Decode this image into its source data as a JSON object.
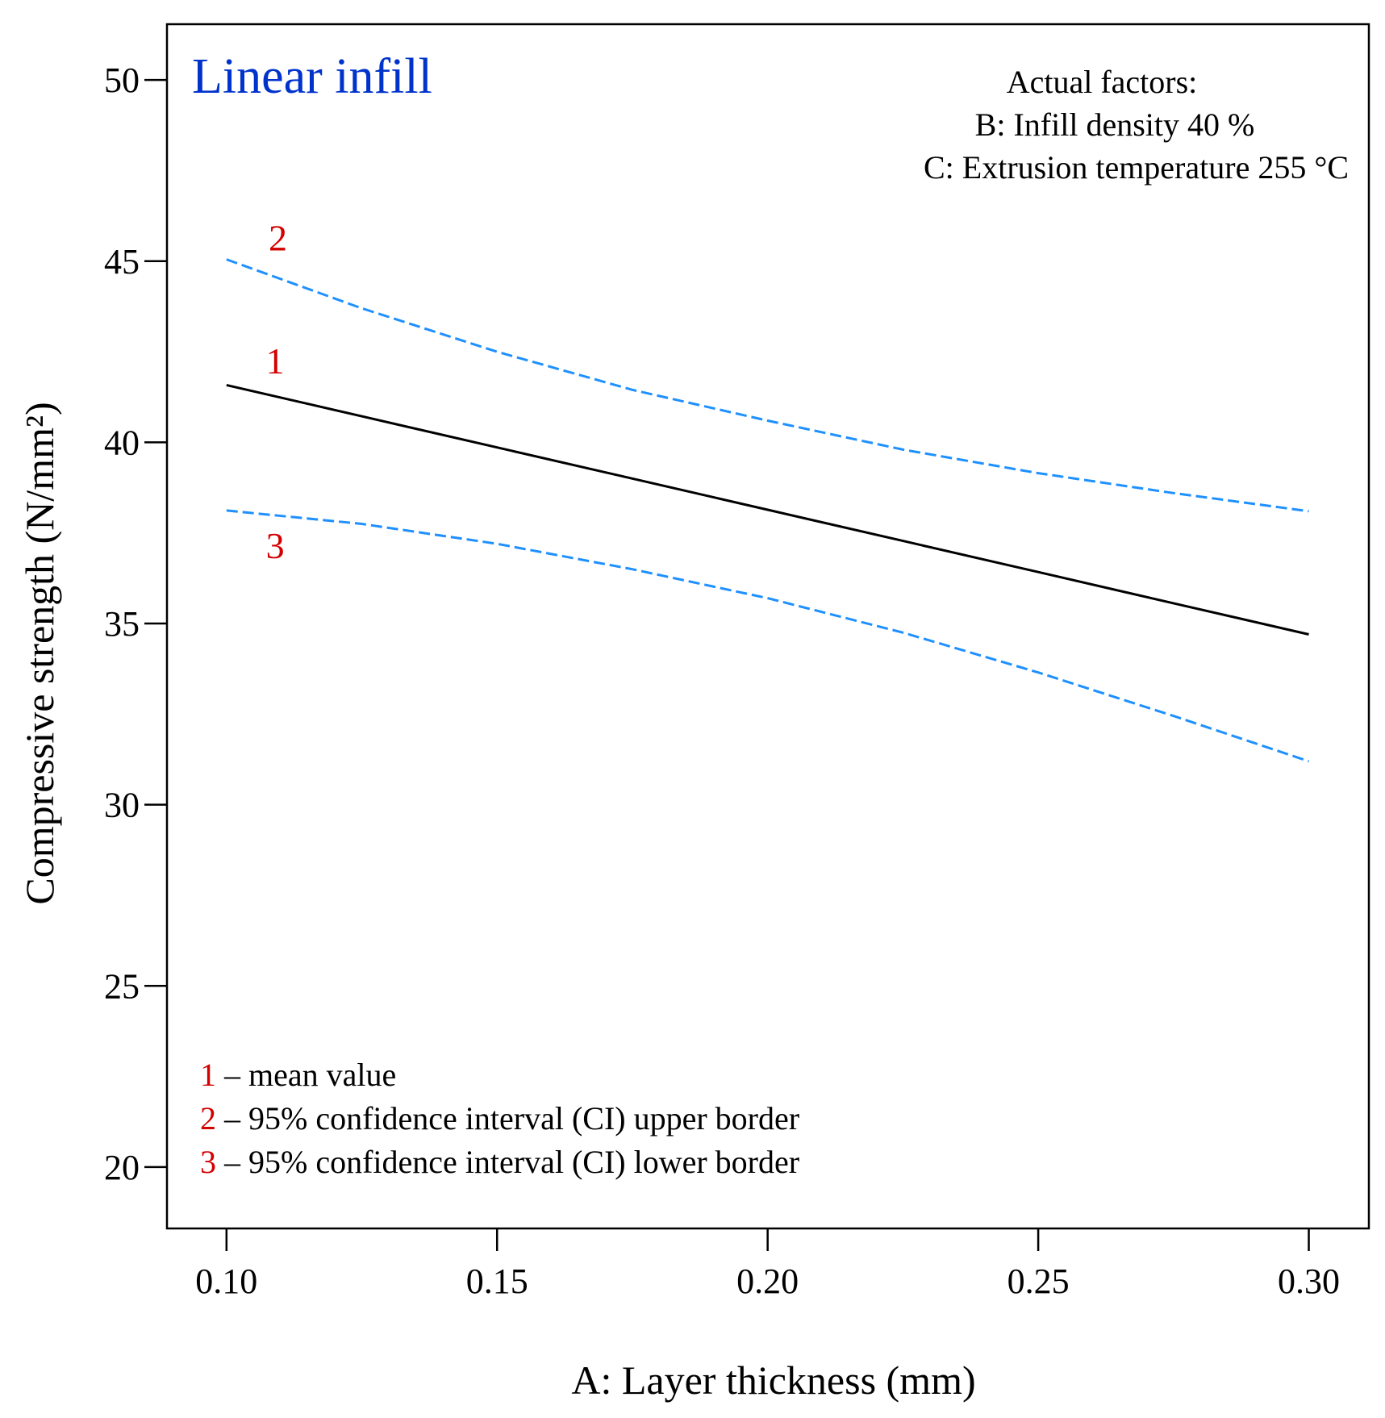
{
  "colors": {
    "title": "#0033cc",
    "mean_line": "#000000",
    "ci_line": "#1e90ff",
    "marker_label": "#d40000",
    "axis": "#000000"
  },
  "chart_data": {
    "type": "line",
    "title": "Linear infill",
    "xlabel": "A: Layer thickness (mm)",
    "ylabel": "Compressive strength (N/mm²)",
    "xlim": [
      0.089,
      0.3111
    ],
    "ylim": [
      18.306,
      51.54
    ],
    "xticks": [
      0.1,
      0.15,
      0.2,
      0.25,
      0.3
    ],
    "xtick_labels": [
      "0.10",
      "0.15",
      "0.20",
      "0.25",
      "0.30"
    ],
    "yticks": [
      20,
      25,
      30,
      35,
      40,
      45,
      50
    ],
    "ytick_labels": [
      "20",
      "25",
      "30",
      "35",
      "40",
      "45",
      "50"
    ],
    "grid": false,
    "x": [
      0.1,
      0.125,
      0.15,
      0.175,
      0.2,
      0.225,
      0.25,
      0.275,
      0.3
    ],
    "series": [
      {
        "key": "1",
        "style": "solid",
        "values": [
          41.58,
          40.72,
          39.86,
          39.0,
          38.14,
          37.28,
          36.42,
          35.56,
          34.7
        ]
      },
      {
        "key": "2",
        "style": "dashed",
        "values": [
          45.05,
          43.7,
          42.5,
          41.45,
          40.6,
          39.8,
          39.15,
          38.6,
          38.1
        ]
      },
      {
        "key": "3",
        "style": "dashed",
        "values": [
          38.12,
          37.75,
          37.2,
          36.5,
          35.7,
          34.75,
          33.65,
          32.45,
          31.2
        ]
      }
    ],
    "curve_labels": [
      {
        "text": "1",
        "x": 0.109,
        "y": 41.9
      },
      {
        "text": "2",
        "x": 0.1095,
        "y": 45.3
      },
      {
        "text": "3",
        "x": 0.109,
        "y": 36.8
      }
    ],
    "annotations": {
      "actual_factors_heading": "Actual factors:",
      "factor_b": "B: Infill density 40 %",
      "factor_c": "C: Extrusion temperature 255 °C"
    },
    "legend": {
      "placement": "bottom-left",
      "items": [
        {
          "num": "1",
          "text": " – mean value"
        },
        {
          "num": "2",
          "text": " – 95% confidence interval (CI) upper border"
        },
        {
          "num": "3",
          "text": " – 95% confidence interval (CI) lower border"
        }
      ]
    }
  }
}
